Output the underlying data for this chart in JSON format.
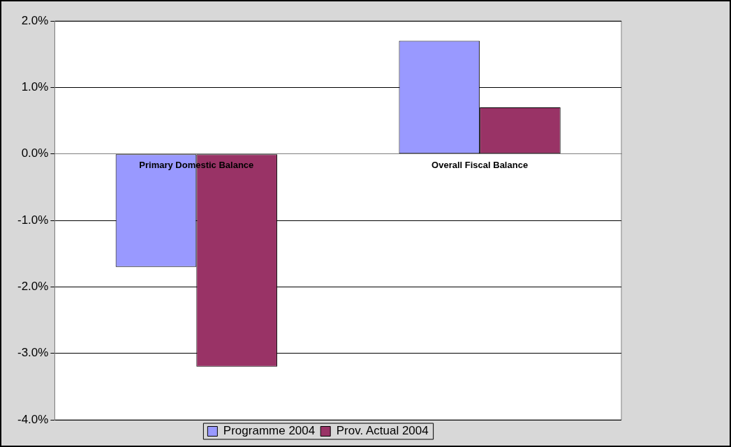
{
  "chart_data": {
    "type": "bar",
    "categories": [
      "Primary Domestic Balance",
      "Overall Fiscal Balance"
    ],
    "series": [
      {
        "name": "Programme 2004",
        "color": "#9999ff",
        "values": [
          -1.7,
          1.7
        ]
      },
      {
        "name": "Prov. Actual 2004",
        "color": "#993366",
        "values": [
          -3.2,
          0.7
        ]
      }
    ],
    "ylim": [
      -4,
      2
    ],
    "yticks": [
      {
        "value": -4,
        "label": "-4.0%"
      },
      {
        "value": -3,
        "label": "-3.0%"
      },
      {
        "value": -2,
        "label": "-2.0%"
      },
      {
        "value": -1,
        "label": "-1.0%"
      },
      {
        "value": 0,
        "label": "0.0%"
      },
      {
        "value": 1,
        "label": "1.0%"
      },
      {
        "value": 2,
        "label": "2.0%"
      }
    ],
    "grid": "y",
    "legend": "bottom"
  }
}
